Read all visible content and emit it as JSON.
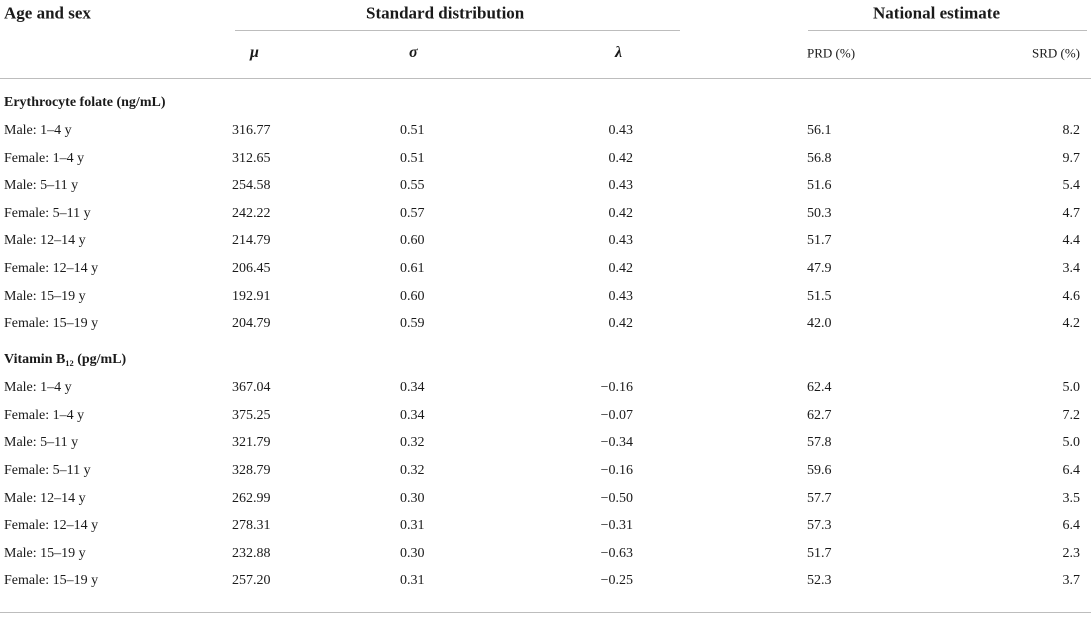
{
  "header": {
    "age_and_sex": "Age and sex",
    "standard_distribution": "Standard distribution",
    "national_estimate": "National estimate",
    "columns": [
      "μ",
      "σ",
      "λ",
      "PRD (%)",
      "SRD (%)"
    ]
  },
  "sections": [
    {
      "title": "Erythrocyte folate (ng/mL)",
      "rows": [
        [
          "Male: 1–4 y",
          "316.77",
          "0.51",
          "0.43",
          "56.1",
          "8.2"
        ],
        [
          "Female: 1–4 y",
          "312.65",
          "0.51",
          "0.42",
          "56.8",
          "9.7"
        ],
        [
          "Male: 5–11 y",
          "254.58",
          "0.55",
          "0.43",
          "51.6",
          "5.4"
        ],
        [
          "Female: 5–11 y",
          "242.22",
          "0.57",
          "0.42",
          "50.3",
          "4.7"
        ],
        [
          "Male: 12–14 y",
          "214.79",
          "0.60",
          "0.43",
          "51.7",
          "4.4"
        ],
        [
          "Female: 12–14 y",
          "206.45",
          "0.61",
          "0.42",
          "47.9",
          "3.4"
        ],
        [
          "Male: 15–19 y",
          "192.91",
          "0.60",
          "0.43",
          "51.5",
          "4.6"
        ],
        [
          "Female: 15–19 y",
          "204.79",
          "0.59",
          "0.42",
          "42.0",
          "4.2"
        ]
      ]
    },
    {
      "title": "Vitamin B₁₂ (pg/mL)",
      "rows": [
        [
          "Male: 1–4 y",
          "367.04",
          "0.34",
          "−0.16",
          "62.4",
          "5.0"
        ],
        [
          "Female: 1–4 y",
          "375.25",
          "0.34",
          "−0.07",
          "62.7",
          "7.2"
        ],
        [
          "Male: 5–11 y",
          "321.79",
          "0.32",
          "−0.34",
          "57.8",
          "5.0"
        ],
        [
          "Female: 5–11 y",
          "328.79",
          "0.32",
          "−0.16",
          "59.6",
          "6.4"
        ],
        [
          "Male: 12–14 y",
          "262.99",
          "0.30",
          "−0.50",
          "57.7",
          "3.5"
        ],
        [
          "Female: 12–14 y",
          "278.31",
          "0.31",
          "−0.31",
          "57.3",
          "6.4"
        ],
        [
          "Male: 15–19 y",
          "232.88",
          "0.30",
          "−0.63",
          "51.7",
          "2.3"
        ],
        [
          "Female: 15–19 y",
          "257.20",
          "0.31",
          "−0.25",
          "52.3",
          "3.7"
        ]
      ]
    }
  ]
}
